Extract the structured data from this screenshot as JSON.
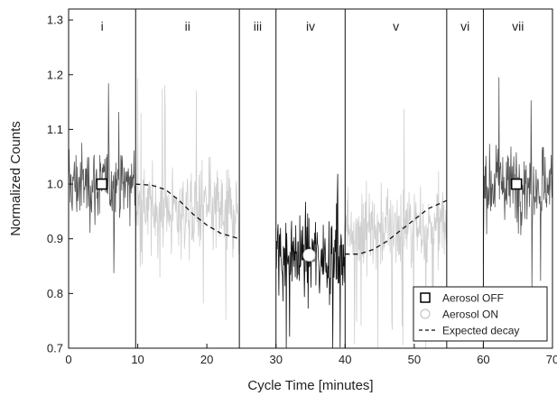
{
  "chart_data": {
    "type": "line",
    "xlabel": "Cycle Time [minutes]",
    "ylabel": "Normalized Counts",
    "xlim": [
      0,
      70
    ],
    "ylim": [
      0.7,
      1.32
    ],
    "x_ticks": [
      0,
      10,
      20,
      30,
      40,
      50,
      60,
      70
    ],
    "y_ticks": [
      0.7,
      0.8,
      0.9,
      1.0,
      1.1,
      1.2,
      1.3
    ],
    "x_tick_labels": [
      "0",
      "10",
      "20",
      "30",
      "40",
      "50",
      "60",
      "70"
    ],
    "y_tick_labels": [
      "0.7",
      "0.8",
      "0.9",
      "1.0",
      "1.1",
      "1.2",
      "1.3"
    ],
    "grid": false,
    "legend_position": "bottom-right",
    "phase_boundaries": [
      9.7,
      24.7,
      30.0,
      40.0,
      54.7,
      60.0
    ],
    "phases": [
      {
        "label": "i",
        "x_start": 0,
        "x_end": 9.7
      },
      {
        "label": "ii",
        "x_start": 9.7,
        "x_end": 24.7
      },
      {
        "label": "iii",
        "x_start": 24.7,
        "x_end": 30.0
      },
      {
        "label": "iv",
        "x_start": 30.0,
        "x_end": 40.0
      },
      {
        "label": "v",
        "x_start": 40.0,
        "x_end": 54.7
      },
      {
        "label": "vi",
        "x_start": 54.7,
        "x_end": 60.0
      },
      {
        "label": "vii",
        "x_start": 60.0,
        "x_end": 70.0
      }
    ],
    "noise_bands": [
      {
        "x_start": 0,
        "x_end": 9.7,
        "center": 1.0,
        "spread": 0.055,
        "color": "#555555"
      },
      {
        "x_start": 9.7,
        "x_end": 24.7,
        "center": 0.95,
        "spread": 0.065,
        "color": "#cfcfcf"
      },
      {
        "x_start": 30.0,
        "x_end": 40.0,
        "center": 0.87,
        "spread": 0.06,
        "color": "#111111"
      },
      {
        "x_start": 40.0,
        "x_end": 54.7,
        "center": 0.92,
        "spread": 0.06,
        "color": "#cfcfcf"
      },
      {
        "x_start": 60.0,
        "x_end": 70.0,
        "center": 1.0,
        "spread": 0.055,
        "color": "#555555"
      }
    ],
    "series": [
      {
        "name": "Aerosol OFF",
        "marker": "square",
        "x": [
          4.8,
          64.8
        ],
        "y": [
          1.0,
          1.0
        ]
      },
      {
        "name": "Aerosol ON",
        "marker": "circle",
        "x": [
          34.8
        ],
        "y": [
          0.87
        ]
      },
      {
        "name": "Expected decay",
        "style": "dashed",
        "segments": [
          {
            "x": [
              9.7,
              12,
              14,
              16,
              18,
              20,
              22,
              24.7
            ],
            "y": [
              1.0,
              0.998,
              0.99,
              0.97,
              0.945,
              0.925,
              0.91,
              0.9
            ]
          },
          {
            "x": [
              40,
              42,
              44,
              46,
              48,
              50,
              52,
              54.7
            ],
            "y": [
              0.872,
              0.872,
              0.88,
              0.895,
              0.915,
              0.935,
              0.955,
              0.97
            ]
          }
        ]
      }
    ]
  }
}
